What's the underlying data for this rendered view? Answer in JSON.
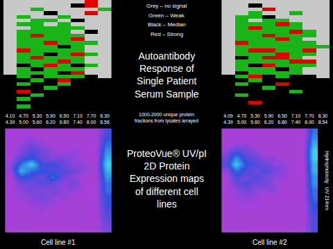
{
  "signal_levels": [
    {
      "value": 0,
      "label": "Grey – no signal",
      "color": "#c8c8c8"
    },
    {
      "value": 1,
      "label": "Green – Weak",
      "color": "#18b418"
    },
    {
      "value": 2,
      "label": "Black – Median",
      "color": "#000000"
    },
    {
      "value": 3,
      "label": "Red – Strong",
      "color": "#e00000"
    }
  ],
  "texts": {
    "heatmap_title": "Autoantibody\nResponse of\nSingle Patient\nSerum Sample",
    "heatmap_note": "1000-2000 unique protein\nfractions from lysates arrayed",
    "map_title": "ProteoVue® UV/pI\n2D Protein\nExpression maps\nof different cell\nlines"
  },
  "chart_data": [
    {
      "type": "heatmap",
      "tick_labels": "x",
      "categories": [
        "4.10\n4.39",
        "4.70\n5.00",
        "5.30\n5.60",
        "5.90\n6.20",
        "6.50\n6.80",
        "7.10\n7.40",
        "7.70\n8.00",
        "8.30\n8.56"
      ],
      "z": [
        [
          0,
          0,
          0,
          0,
          0,
          0,
          3,
          0
        ],
        [
          0,
          0,
          0,
          0,
          0,
          2,
          3,
          0
        ],
        [
          0,
          0,
          1,
          0,
          0,
          0,
          0,
          1
        ],
        [
          0,
          0,
          0,
          2,
          0,
          0,
          3,
          0
        ],
        [
          0,
          1,
          0,
          0,
          1,
          0,
          0,
          0
        ],
        [
          0,
          0,
          1,
          1,
          0,
          2,
          0,
          0
        ],
        [
          0,
          1,
          1,
          0,
          1,
          0,
          0,
          0
        ],
        [
          0,
          0,
          1,
          1,
          1,
          1,
          0,
          0
        ],
        [
          0,
          1,
          1,
          1,
          1,
          0,
          2,
          0
        ],
        [
          0,
          1,
          3,
          1,
          1,
          1,
          0,
          0
        ],
        [
          0,
          1,
          1,
          1,
          1,
          3,
          0,
          0
        ],
        [
          0,
          1,
          1,
          3,
          1,
          1,
          1,
          0
        ],
        [
          0,
          1,
          1,
          1,
          2,
          1,
          0,
          0
        ],
        [
          0,
          3,
          1,
          1,
          1,
          1,
          0,
          0
        ],
        [
          0,
          1,
          1,
          2,
          1,
          3,
          1,
          0
        ],
        [
          0,
          1,
          3,
          1,
          1,
          1,
          0,
          0
        ],
        [
          0,
          1,
          1,
          1,
          3,
          1,
          0,
          0
        ],
        [
          0,
          2,
          1,
          3,
          1,
          2,
          1,
          0
        ],
        [
          0,
          1,
          2,
          1,
          1,
          1,
          0,
          0
        ],
        [
          0,
          1,
          1,
          1,
          2,
          3,
          0,
          0
        ],
        [
          2,
          1,
          2,
          1,
          1,
          1,
          2,
          0
        ],
        [
          2,
          2,
          1,
          2,
          3,
          2,
          2,
          2
        ],
        [
          2,
          1,
          2,
          2,
          1,
          2,
          2,
          2
        ],
        [
          2,
          2,
          2,
          1,
          2,
          2,
          2,
          2
        ],
        [
          2,
          3,
          2,
          2,
          2,
          2,
          2,
          2
        ],
        [
          2,
          2,
          1,
          2,
          2,
          2,
          2,
          2
        ],
        [
          2,
          1,
          2,
          2,
          2,
          2,
          2,
          2
        ],
        [
          2,
          2,
          2,
          2,
          2,
          2,
          2,
          2
        ],
        [
          2,
          1,
          2,
          2,
          2,
          2,
          2,
          2
        ],
        [
          2,
          2,
          2,
          2,
          2,
          2,
          2,
          2
        ]
      ]
    },
    {
      "type": "heatmap",
      "tick_labels": "x",
      "categories": [
        "4.09\n4.39",
        "4.70\n5.00",
        "5.30\n5.60",
        "5.90\n6.20",
        "6.50\n6.80",
        "7.10\n7.40",
        "7.70\n8.00",
        "8.30\n8.54"
      ],
      "z": [
        [
          0,
          0,
          0,
          0,
          0,
          0,
          0,
          0
        ],
        [
          0,
          0,
          2,
          0,
          0,
          0,
          0,
          0
        ],
        [
          0,
          0,
          0,
          3,
          0,
          0,
          0,
          0
        ],
        [
          0,
          0,
          1,
          0,
          0,
          1,
          0,
          0
        ],
        [
          0,
          1,
          1,
          2,
          0,
          0,
          0,
          0
        ],
        [
          0,
          1,
          0,
          1,
          1,
          0,
          0,
          0
        ],
        [
          0,
          1,
          1,
          1,
          3,
          1,
          0,
          0
        ],
        [
          0,
          1,
          3,
          1,
          1,
          1,
          0,
          0
        ],
        [
          0,
          1,
          1,
          1,
          1,
          3,
          1,
          0
        ],
        [
          0,
          1,
          1,
          3,
          1,
          1,
          1,
          0
        ],
        [
          0,
          1,
          1,
          1,
          3,
          1,
          0,
          0
        ],
        [
          0,
          3,
          1,
          1,
          1,
          1,
          1,
          0
        ],
        [
          0,
          1,
          1,
          1,
          1,
          1,
          1,
          1
        ],
        [
          0,
          1,
          3,
          3,
          1,
          1,
          3,
          0
        ],
        [
          0,
          1,
          1,
          1,
          3,
          1,
          1,
          0
        ],
        [
          0,
          2,
          1,
          3,
          3,
          1,
          0,
          0
        ],
        [
          0,
          1,
          1,
          1,
          1,
          3,
          3,
          0
        ],
        [
          0,
          1,
          2,
          3,
          1,
          1,
          1,
          0
        ],
        [
          0,
          1,
          1,
          1,
          2,
          1,
          0,
          0
        ],
        [
          0,
          2,
          1,
          1,
          1,
          1,
          0,
          0
        ],
        [
          2,
          1,
          3,
          2,
          1,
          2,
          2,
          0
        ],
        [
          2,
          2,
          1,
          2,
          2,
          2,
          2,
          2
        ],
        [
          2,
          1,
          2,
          2,
          3,
          2,
          2,
          2
        ],
        [
          2,
          2,
          2,
          1,
          2,
          2,
          2,
          2
        ],
        [
          2,
          2,
          2,
          2,
          2,
          1,
          2,
          2
        ],
        [
          2,
          1,
          2,
          2,
          2,
          2,
          2,
          2
        ],
        [
          2,
          2,
          2,
          2,
          2,
          2,
          2,
          2
        ],
        [
          2,
          2,
          3,
          2,
          2,
          2,
          2,
          2
        ],
        [
          2,
          2,
          2,
          2,
          2,
          2,
          2,
          2
        ],
        [
          2,
          2,
          2,
          2,
          2,
          2,
          2,
          2
        ]
      ]
    },
    {
      "type": "heatmap",
      "tick_labels": false,
      "xlabel": "Cell line #1",
      "zlim": [
        0,
        10
      ],
      "z": [
        [
          1,
          1,
          1,
          1,
          1,
          1,
          1,
          1,
          1,
          4
        ],
        [
          1,
          1,
          2,
          1,
          1,
          1,
          1,
          1,
          1,
          5
        ],
        [
          1,
          2,
          3,
          2,
          1,
          1,
          1,
          1,
          1,
          6
        ],
        [
          1,
          2,
          4,
          3,
          2,
          1,
          2,
          1,
          1,
          7
        ],
        [
          1,
          4,
          5,
          3,
          2,
          3,
          2,
          1,
          1,
          8
        ],
        [
          2,
          6,
          9,
          4,
          5,
          3,
          2,
          2,
          1,
          9
        ],
        [
          2,
          8,
          6,
          5,
          4,
          4,
          3,
          2,
          1,
          8
        ],
        [
          1,
          5,
          4,
          3,
          6,
          3,
          2,
          1,
          1,
          7
        ],
        [
          1,
          3,
          3,
          4,
          3,
          2,
          3,
          1,
          1,
          6
        ],
        [
          1,
          2,
          3,
          2,
          3,
          2,
          2,
          1,
          1,
          6
        ],
        [
          1,
          2,
          2,
          3,
          2,
          2,
          1,
          1,
          1,
          5
        ],
        [
          1,
          1,
          2,
          2,
          2,
          1,
          1,
          1,
          1,
          5
        ],
        [
          1,
          1,
          1,
          2,
          1,
          1,
          1,
          1,
          1,
          4
        ],
        [
          1,
          1,
          1,
          1,
          1,
          1,
          1,
          1,
          1,
          4
        ],
        [
          1,
          1,
          1,
          1,
          1,
          1,
          1,
          1,
          1,
          3
        ],
        [
          1,
          1,
          1,
          1,
          1,
          1,
          1,
          1,
          1,
          3
        ]
      ]
    },
    {
      "type": "heatmap",
      "tick_labels": false,
      "xlabel": "Cell line #2",
      "ylabel": "Hydrophobicity   UV 214nm",
      "zlim": [
        0,
        10
      ],
      "z": [
        [
          1,
          1,
          1,
          1,
          1,
          1,
          1,
          1,
          1,
          6
        ],
        [
          1,
          1,
          1,
          1,
          1,
          1,
          1,
          1,
          1,
          7
        ],
        [
          1,
          2,
          2,
          1,
          1,
          1,
          1,
          1,
          1,
          8
        ],
        [
          2,
          4,
          3,
          2,
          1,
          1,
          1,
          1,
          1,
          9
        ],
        [
          3,
          7,
          4,
          3,
          2,
          2,
          1,
          1,
          1,
          9
        ],
        [
          4,
          9,
          5,
          4,
          3,
          2,
          2,
          1,
          1,
          8
        ],
        [
          2,
          6,
          4,
          3,
          4,
          3,
          2,
          1,
          1,
          8
        ],
        [
          1,
          4,
          3,
          4,
          3,
          2,
          2,
          1,
          1,
          7
        ],
        [
          1,
          3,
          4,
          3,
          3,
          2,
          1,
          1,
          1,
          7
        ],
        [
          1,
          2,
          3,
          2,
          2,
          2,
          1,
          1,
          1,
          6
        ],
        [
          1,
          2,
          2,
          2,
          1,
          1,
          1,
          1,
          1,
          6
        ],
        [
          1,
          1,
          2,
          1,
          1,
          1,
          1,
          1,
          1,
          5
        ],
        [
          1,
          1,
          1,
          1,
          1,
          1,
          1,
          1,
          1,
          5
        ],
        [
          1,
          1,
          1,
          1,
          1,
          1,
          1,
          1,
          1,
          4
        ],
        [
          1,
          1,
          1,
          1,
          1,
          1,
          1,
          1,
          1,
          4
        ],
        [
          1,
          1,
          1,
          1,
          1,
          1,
          1,
          1,
          1,
          4
        ]
      ]
    }
  ]
}
